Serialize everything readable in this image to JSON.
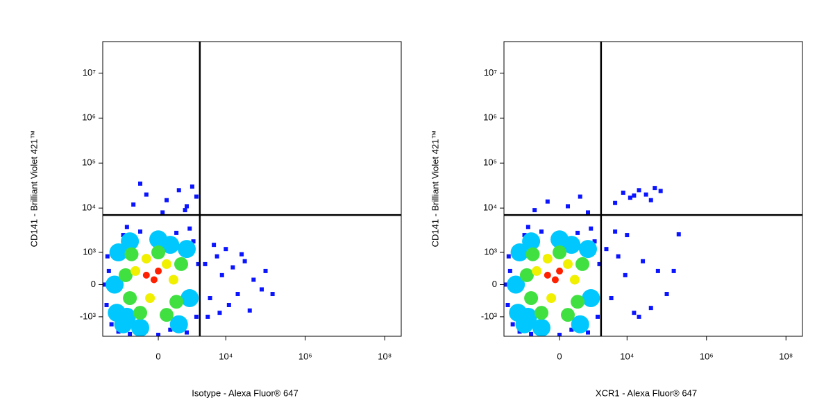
{
  "chart_data": [
    {
      "type": "scatter",
      "scale": "biexponential",
      "x_label": "Isotype - Alexa Fluor® 647",
      "y_label": "CD141 - Brilliant Violet 421™",
      "xlim": [
        -5000,
        260000000
      ],
      "ylim": [
        -2800,
        50000000
      ],
      "xticks": [
        0,
        {
          "value": 10000,
          "label": "10⁴"
        },
        {
          "value": 1000000,
          "label": "10⁶"
        },
        {
          "value": 100000000,
          "label": "10⁸"
        }
      ],
      "yticks": [
        {
          "value": -1000,
          "label": "-10³"
        },
        0,
        {
          "value": 1000,
          "label": "10³"
        },
        {
          "value": 10000,
          "label": "10⁴"
        },
        {
          "value": 100000,
          "label": "10⁵"
        },
        {
          "value": 1000000,
          "label": "10⁶"
        },
        {
          "value": 10000000,
          "label": "10⁷"
        }
      ],
      "gates": {
        "x": 2200,
        "y": 7000
      },
      "series": [
        {
          "color": "#0a14ff",
          "x": [
            -4000,
            -3500,
            -3000,
            -2500,
            -2000,
            -1500,
            -1000,
            -500,
            0,
            500,
            1000,
            1500,
            1800,
            2000,
            -3800,
            -2800,
            1200,
            -1200,
            300,
            -4500,
            -800,
            -300,
            200,
            600,
            1000,
            1400,
            -500,
            1800,
            100,
            900,
            3000,
            4000,
            6000,
            8000,
            12000,
            15000,
            20000,
            30000,
            50000,
            80000,
            100000,
            150000,
            5000,
            10000,
            40000,
            25000,
            3500,
            7000
          ],
          "y": [
            -500,
            300,
            -1500,
            1200,
            -2200,
            2500,
            -2500,
            3000,
            -2600,
            2800,
            -2300,
            1800,
            -1000,
            500,
            800,
            -800,
            3500,
            3800,
            -2000,
            0,
            12000,
            20000,
            15000,
            25000,
            11000,
            30000,
            35000,
            18000,
            8000,
            9000,
            500,
            -300,
            800,
            200,
            -500,
            400,
            -200,
            600,
            100,
            -100,
            300,
            -200,
            1500,
            1200,
            -700,
            900,
            -1000,
            -800
          ]
        },
        {
          "color": "#00c8ff",
          "x": [
            -2500,
            -2000,
            -1500,
            -1000,
            -500,
            0,
            600,
            1000,
            1200,
            -2200,
            300,
            -1200
          ],
          "y": [
            0,
            1000,
            -1500,
            1800,
            -1800,
            2000,
            -1500,
            1200,
            -300,
            -800,
            1500,
            -1000
          ]
        },
        {
          "color": "#40e040",
          "x": [
            -1300,
            -900,
            -500,
            0,
            500,
            700,
            -1000,
            200
          ],
          "y": [
            200,
            900,
            -800,
            1000,
            -400,
            500,
            -300,
            -900
          ]
        },
        {
          "color": "#f0f000",
          "x": [
            -700,
            -300,
            200,
            -200,
            400
          ],
          "y": [
            300,
            700,
            500,
            -300,
            100
          ]
        },
        {
          "color": "#ff2000",
          "x": [
            -300,
            0,
            -100
          ],
          "y": [
            200,
            300,
            100
          ]
        }
      ]
    },
    {
      "type": "scatter",
      "scale": "biexponential",
      "x_label": "XCR1 - Alexa Fluor® 647",
      "y_label": "CD141 - Brilliant Violet 421™",
      "xlim": [
        -5000,
        260000000
      ],
      "ylim": [
        -2800,
        50000000
      ],
      "xticks": [
        0,
        {
          "value": 10000,
          "label": "10⁴"
        },
        {
          "value": 1000000,
          "label": "10⁶"
        },
        {
          "value": 100000000,
          "label": "10⁸"
        }
      ],
      "yticks": [
        {
          "value": -1000,
          "label": "-10³"
        },
        0,
        {
          "value": 1000,
          "label": "10³"
        },
        {
          "value": 10000,
          "label": "10⁴"
        },
        {
          "value": 100000,
          "label": "10⁵"
        },
        {
          "value": 1000000,
          "label": "10⁶"
        },
        {
          "value": 10000000,
          "label": "10⁷"
        }
      ],
      "gates": {
        "x": 2200,
        "y": 7000
      },
      "series": [
        {
          "color": "#0a14ff",
          "x": [
            -4000,
            -3500,
            -3000,
            -2500,
            -2000,
            -1500,
            -1000,
            -500,
            0,
            500,
            1000,
            1500,
            1800,
            2000,
            -3800,
            -2800,
            1200,
            -1200,
            300,
            -4500,
            -800,
            -300,
            200,
            600,
            1000,
            5000,
            8000,
            12000,
            20000,
            30000,
            50000,
            70000,
            40000,
            15000,
            10000,
            3000,
            4000,
            6000,
            9000,
            15000,
            25000,
            40000,
            60000,
            100000,
            150000,
            5000,
            20000,
            200000
          ],
          "y": [
            -500,
            300,
            -1500,
            1200,
            -2200,
            2500,
            -2500,
            3000,
            -2600,
            2800,
            -2300,
            1800,
            -1000,
            500,
            800,
            -800,
            3500,
            3800,
            -2000,
            0,
            9000,
            14000,
            11000,
            18000,
            8000,
            13000,
            22000,
            17000,
            25000,
            20000,
            28000,
            24000,
            15000,
            19000,
            2500,
            1200,
            -300,
            800,
            200,
            -800,
            600,
            -600,
            300,
            -200,
            300,
            3000,
            -1000,
            2600
          ]
        },
        {
          "color": "#00c8ff",
          "x": [
            -2500,
            -2000,
            -1500,
            -1000,
            -500,
            0,
            600,
            1000,
            1200,
            -2200,
            300,
            -1200
          ],
          "y": [
            0,
            1000,
            -1500,
            1800,
            -1800,
            2000,
            -1500,
            1200,
            -300,
            -800,
            1500,
            -1000
          ]
        },
        {
          "color": "#40e040",
          "x": [
            -1300,
            -900,
            -500,
            0,
            500,
            700,
            -1000,
            200
          ],
          "y": [
            200,
            900,
            -800,
            1000,
            -400,
            500,
            -300,
            -900
          ]
        },
        {
          "color": "#f0f000",
          "x": [
            -700,
            -300,
            200,
            -200,
            400
          ],
          "y": [
            300,
            700,
            500,
            -300,
            100
          ]
        },
        {
          "color": "#ff2000",
          "x": [
            -300,
            0,
            -100
          ],
          "y": [
            200,
            300,
            100
          ]
        }
      ]
    }
  ]
}
